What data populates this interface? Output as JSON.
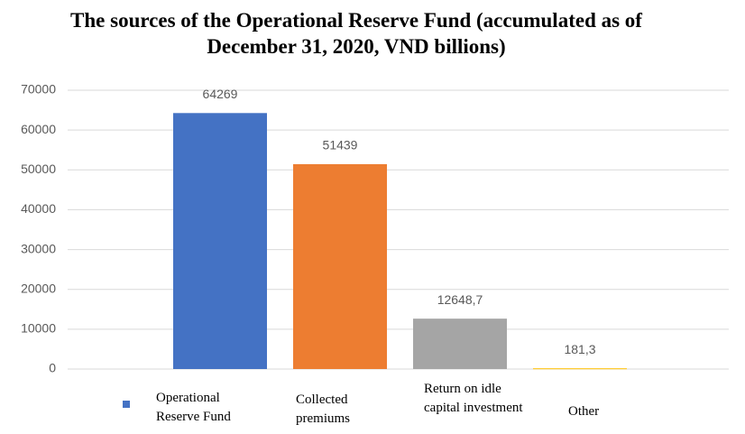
{
  "chart_data": {
    "type": "bar",
    "title": "The sources of the Operational Reserve Fund (accumulated as of December 31, 2020, VND billions)",
    "categories": [
      "Operational Reserve Fund",
      "Collected premiums",
      "Return on idle capital investment",
      "Other"
    ],
    "values": [
      64269,
      51439,
      12648.7,
      181.3
    ],
    "value_labels": [
      "64269",
      "51439",
      "12648,7",
      "181,3"
    ],
    "colors": [
      "#4472c4",
      "#ed7d31",
      "#a5a5a5",
      "#ffc000"
    ],
    "ylim": [
      0,
      70000
    ],
    "yticks": [
      0,
      10000,
      20000,
      30000,
      40000,
      50000,
      60000,
      70000
    ],
    "grid": true
  }
}
